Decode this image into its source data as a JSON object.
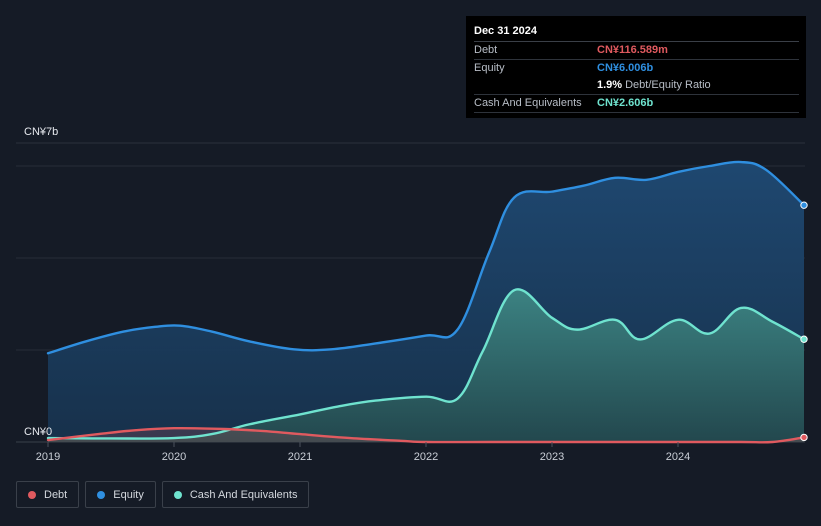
{
  "tooltip": {
    "date": "Dec 31 2024",
    "debt_label": "Debt",
    "debt_value": "CN¥116.589m",
    "equity_label": "Equity",
    "equity_value": "CN¥6.006b",
    "ratio_value": "1.9%",
    "ratio_label": "Debt/Equity Ratio",
    "cash_label": "Cash And Equivalents",
    "cash_value": "CN¥2.606b"
  },
  "legend": {
    "debt": "Debt",
    "equity": "Equity",
    "cash": "Cash And Equivalents"
  },
  "colors": {
    "debt": "#e05a5f",
    "equity": "#2f8fe0",
    "cash": "#6fe3cf",
    "background": "#151b26"
  },
  "chart_data": {
    "type": "area",
    "y_top_label": "CN¥7b",
    "y_zero_label": "CN¥0",
    "ylim": [
      0,
      7
    ],
    "x_ticks": [
      "2019",
      "2020",
      "2021",
      "2022",
      "2023",
      "2024"
    ],
    "x_tick_positions": [
      2019,
      2020,
      2021,
      2022,
      2023,
      2024
    ],
    "xlim": [
      2019,
      2025
    ],
    "grid": true,
    "series": [
      {
        "name": "Equity",
        "x": [
          2019.0,
          2019.3,
          2019.6,
          2019.85,
          2020.05,
          2020.3,
          2020.6,
          2020.95,
          2021.25,
          2021.6,
          2022.0,
          2022.25,
          2022.5,
          2022.7,
          2023.0,
          2023.25,
          2023.5,
          2023.75,
          2024.0,
          2024.25,
          2024.5,
          2024.7,
          2025.0
        ],
        "values": [
          2.25,
          2.55,
          2.8,
          2.92,
          2.95,
          2.8,
          2.55,
          2.35,
          2.35,
          2.5,
          2.7,
          2.85,
          4.8,
          6.2,
          6.35,
          6.5,
          6.7,
          6.65,
          6.85,
          7.0,
          7.1,
          6.9,
          6.006
        ]
      },
      {
        "name": "Cash And Equivalents",
        "x": [
          2019.0,
          2019.5,
          2020.0,
          2020.3,
          2020.6,
          2021.0,
          2021.3,
          2021.6,
          2022.0,
          2022.25,
          2022.45,
          2022.7,
          2023.0,
          2023.2,
          2023.5,
          2023.7,
          2024.0,
          2024.25,
          2024.5,
          2024.75,
          2025.0
        ],
        "values": [
          0.1,
          0.09,
          0.1,
          0.2,
          0.45,
          0.7,
          0.9,
          1.05,
          1.15,
          1.1,
          2.3,
          3.85,
          3.15,
          2.85,
          3.1,
          2.6,
          3.1,
          2.75,
          3.4,
          3.05,
          2.606
        ]
      },
      {
        "name": "Debt",
        "x": [
          2019.0,
          2019.4,
          2019.7,
          2020.0,
          2020.4,
          2020.7,
          2021.0,
          2021.4,
          2021.8,
          2022.0,
          2022.5,
          2023.0,
          2023.5,
          2024.0,
          2024.5,
          2024.75,
          2025.0
        ],
        "values": [
          0.05,
          0.2,
          0.3,
          0.35,
          0.33,
          0.28,
          0.2,
          0.1,
          0.03,
          0.0,
          0.0,
          0.0,
          0.0,
          0.0,
          0.0,
          0.0,
          0.116589
        ]
      }
    ]
  }
}
